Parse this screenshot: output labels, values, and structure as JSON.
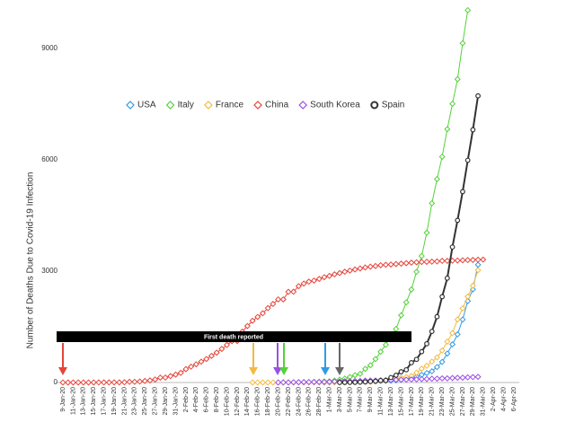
{
  "chart_data": {
    "type": "line",
    "y_label": "Number of Deaths Due to Covid-19 Infection",
    "annotation": "First death reported",
    "categories": [
      "9-Jan-20",
      null,
      "11-Jan-20",
      null,
      "13-Jan-20",
      null,
      "15-Jan-20",
      null,
      "17-Jan-20",
      null,
      "19-Jan-20",
      null,
      "21-Jan-20",
      null,
      "23-Jan-20",
      null,
      "25-Jan-20",
      null,
      "27-Jan-20",
      null,
      "29-Jan-20",
      null,
      "31-Jan-20",
      null,
      "2-Feb-20",
      null,
      "4-Feb-20",
      null,
      "6-Feb-20",
      null,
      "8-Feb-20",
      null,
      "10-Feb-20",
      null,
      "12-Feb-20",
      null,
      "14-Feb-20",
      null,
      "16-Feb-20",
      null,
      "18-Feb-20",
      null,
      "20-Feb-20",
      null,
      "22-Feb-20",
      null,
      "24-Feb-20",
      null,
      "26-Feb-20",
      null,
      "28-Feb-20",
      null,
      "1-Mar-20",
      null,
      "3-Mar-20",
      null,
      "5-Mar-20",
      null,
      "7-Mar-20",
      null,
      "9-Mar-20",
      null,
      "11-Mar-20",
      null,
      "13-Mar-20",
      null,
      "15-Mar-20",
      null,
      "17-Mar-20",
      null,
      "19-Mar-20",
      null,
      "21-Mar-20",
      null,
      "23-Mar-20",
      null,
      "25-Mar-20",
      null,
      "27-Mar-20",
      null,
      "29-Mar-20",
      null,
      "31-Mar-20",
      null,
      "2-Apr-20",
      null,
      "4-Apr-20",
      null,
      "6-Apr-20"
    ],
    "ylim": [
      0,
      10200
    ],
    "yticks": [
      0,
      3000,
      6000,
      9000
    ],
    "series": [
      {
        "name": "USA",
        "color": "#2f9be8",
        "marker": "diamond",
        "values": [
          null,
          null,
          null,
          null,
          null,
          null,
          null,
          null,
          null,
          null,
          null,
          null,
          null,
          null,
          null,
          null,
          null,
          null,
          null,
          null,
          null,
          null,
          null,
          null,
          null,
          null,
          null,
          null,
          null,
          null,
          null,
          null,
          null,
          null,
          null,
          null,
          null,
          null,
          null,
          null,
          null,
          null,
          null,
          null,
          null,
          null,
          null,
          null,
          null,
          null,
          null,
          1,
          1,
          6,
          9,
          11,
          12,
          15,
          19,
          22,
          26,
          30,
          38,
          41,
          48,
          57,
          69,
          87,
          110,
          150,
          206,
          255,
          301,
          414,
          555,
          780,
          1027,
          1295,
          1695,
          2191,
          2509,
          3170,
          null,
          null,
          null,
          null,
          null,
          null,
          null
        ]
      },
      {
        "name": "Italy",
        "color": "#55d13a",
        "marker": "diamond",
        "values": [
          null,
          null,
          null,
          null,
          null,
          null,
          null,
          null,
          null,
          null,
          null,
          null,
          null,
          null,
          null,
          null,
          null,
          null,
          null,
          null,
          null,
          null,
          null,
          null,
          null,
          null,
          null,
          null,
          null,
          null,
          null,
          null,
          null,
          null,
          null,
          null,
          null,
          null,
          null,
          null,
          null,
          null,
          null,
          1,
          2,
          3,
          7,
          10,
          12,
          17,
          21,
          29,
          34,
          52,
          79,
          107,
          148,
          197,
          233,
          366,
          463,
          631,
          827,
          1016,
          1266,
          1441,
          1809,
          2158,
          2503,
          2978,
          3405,
          4032,
          4825,
          5476,
          6077,
          6820,
          7503,
          8165,
          9134,
          10023,
          null,
          null,
          null,
          null,
          null,
          null,
          null,
          null,
          null
        ]
      },
      {
        "name": "France",
        "color": "#f5b942",
        "marker": "diamond",
        "values": [
          null,
          null,
          null,
          null,
          null,
          null,
          null,
          null,
          null,
          null,
          null,
          null,
          null,
          null,
          null,
          null,
          null,
          null,
          null,
          null,
          null,
          null,
          null,
          null,
          null,
          null,
          null,
          null,
          null,
          null,
          null,
          null,
          null,
          null,
          null,
          null,
          null,
          1,
          1,
          1,
          1,
          1,
          1,
          1,
          1,
          1,
          1,
          1,
          2,
          2,
          2,
          2,
          2,
          3,
          4,
          4,
          6,
          9,
          11,
          19,
          19,
          33,
          48,
          48,
          79,
          91,
          127,
          148,
          175,
          264,
          372,
          450,
          562,
          674,
          860,
          1100,
          1331,
          1696,
          1995,
          2314,
          2606,
          3024,
          null,
          null,
          null,
          null,
          null,
          null,
          null
        ]
      },
      {
        "name": "China",
        "color": "#e4453a",
        "marker": "diamond",
        "values": [
          1,
          1,
          1,
          1,
          1,
          1,
          1,
          2,
          2,
          2,
          3,
          4,
          6,
          17,
          18,
          26,
          42,
          56,
          82,
          131,
          133,
          171,
          213,
          259,
          361,
          425,
          490,
          562,
          632,
          717,
          804,
          904,
          1011,
          1111,
          1116,
          1368,
          1520,
          1662,
          1765,
          1863,
          2002,
          2114,
          2236,
          2236,
          2441,
          2443,
          2593,
          2663,
          2715,
          2744,
          2788,
          2835,
          2870,
          2912,
          2945,
          2981,
          3013,
          3042,
          3070,
          3097,
          3119,
          3136,
          3158,
          3169,
          3176,
          3189,
          3199,
          3213,
          3226,
          3237,
          3245,
          3249,
          3253,
          3259,
          3274,
          3274,
          3281,
          3285,
          3291,
          3296,
          3299,
          3304,
          3308,
          null,
          null,
          null,
          null,
          null,
          null
        ]
      },
      {
        "name": "South Korea",
        "color": "#9b4fe6",
        "marker": "diamond",
        "values": [
          null,
          null,
          null,
          null,
          null,
          null,
          null,
          null,
          null,
          null,
          null,
          null,
          null,
          null,
          null,
          null,
          null,
          null,
          null,
          null,
          null,
          null,
          null,
          null,
          null,
          null,
          null,
          null,
          null,
          null,
          null,
          null,
          null,
          null,
          null,
          null,
          null,
          null,
          null,
          null,
          null,
          null,
          1,
          2,
          2,
          6,
          8,
          10,
          12,
          13,
          13,
          16,
          17,
          28,
          28,
          35,
          35,
          42,
          44,
          50,
          53,
          54,
          60,
          66,
          66,
          72,
          75,
          75,
          81,
          84,
          91,
          94,
          102,
          104,
          111,
          111,
          120,
          126,
          131,
          139,
          144,
          152,
          null,
          null,
          null,
          null,
          null,
          null,
          null
        ]
      },
      {
        "name": "Spain",
        "color": "#333333",
        "marker": "circle",
        "values": [
          null,
          null,
          null,
          null,
          null,
          null,
          null,
          null,
          null,
          null,
          null,
          null,
          null,
          null,
          null,
          null,
          null,
          null,
          null,
          null,
          null,
          null,
          null,
          null,
          null,
          null,
          null,
          null,
          null,
          null,
          null,
          null,
          null,
          null,
          null,
          null,
          null,
          null,
          null,
          null,
          null,
          null,
          null,
          null,
          null,
          null,
          null,
          null,
          null,
          null,
          null,
          null,
          null,
          null,
          1,
          2,
          3,
          5,
          10,
          17,
          28,
          35,
          54,
          55,
          133,
          195,
          289,
          342,
          533,
          623,
          830,
          1043,
          1375,
          1772,
          2311,
          2808,
          3647,
          4365,
          5138,
          5982,
          6803,
          7716,
          null,
          null,
          null,
          null,
          null,
          null,
          null
        ]
      }
    ]
  }
}
